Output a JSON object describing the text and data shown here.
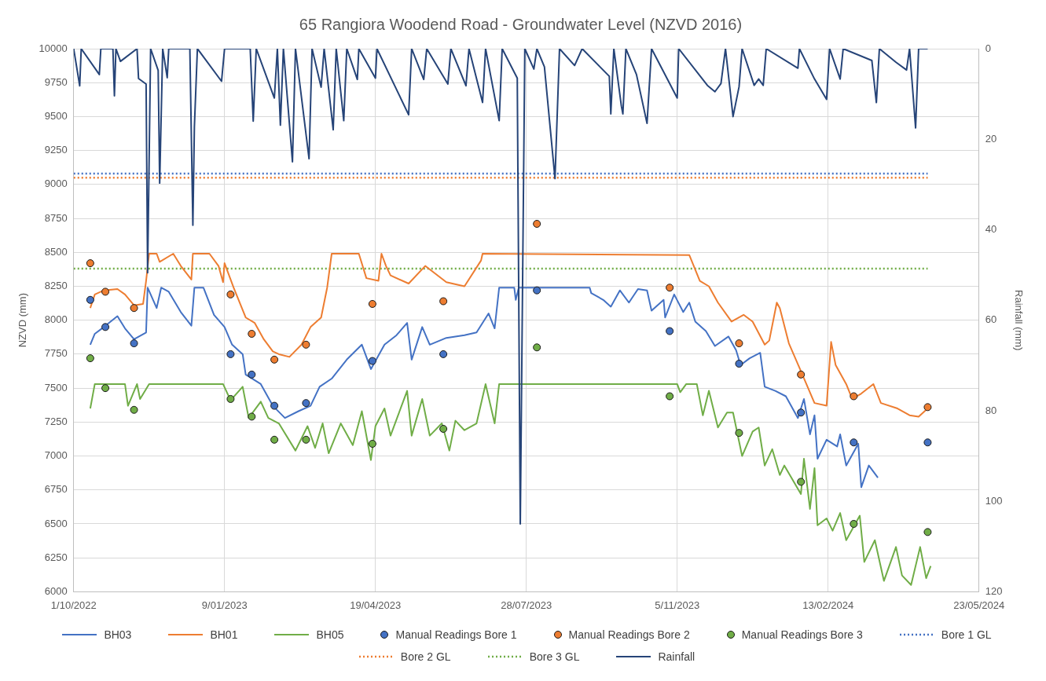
{
  "chart_data": {
    "type": "line",
    "title": "65 Rangiora Woodend Road - Groundwater Level (NZVD 2016)",
    "ylabel": "NZVD (mm)",
    "y2label": "Rainfall (mm)",
    "xlim": [
      "2022-10-01",
      "2024-05-23"
    ],
    "xticks": [
      {
        "value": "2022-10-01",
        "label": "1/10/2022"
      },
      {
        "value": "2023-01-09",
        "label": "9/01/2023"
      },
      {
        "value": "2023-04-19",
        "label": "19/04/2023"
      },
      {
        "value": "2023-07-28",
        "label": "28/07/2023"
      },
      {
        "value": "2023-11-05",
        "label": "5/11/2023"
      },
      {
        "value": "2024-02-13",
        "label": "13/02/2024"
      },
      {
        "value": "2024-05-23",
        "label": "23/05/2024"
      }
    ],
    "ylim": [
      6000,
      10000
    ],
    "yticks": [
      6000,
      6250,
      6500,
      6750,
      7000,
      7250,
      7500,
      7750,
      8000,
      8250,
      8500,
      8750,
      9000,
      9250,
      9500,
      9750,
      10000
    ],
    "y2lim": [
      120,
      0
    ],
    "y2ticks": [
      0,
      20,
      40,
      60,
      80,
      100,
      120
    ],
    "grid": true,
    "legend": "bottom",
    "series": [
      {
        "name": "BH03",
        "color": "#4472c4",
        "x": [
          "2022-10-12",
          "2022-10-15",
          "2022-10-21",
          "2022-10-30",
          "2022-11-04",
          "2022-11-10",
          "2022-11-18",
          "2022-11-19",
          "2022-11-25",
          "2022-11-28",
          "2022-12-03",
          "2022-12-11",
          "2022-12-18",
          "2022-12-20",
          "2022-12-26",
          "2023-01-02",
          "2023-01-09",
          "2023-01-14",
          "2023-01-21",
          "2023-01-23",
          "2023-02-02",
          "2023-02-10",
          "2023-02-18",
          "2023-02-27",
          "2023-03-07",
          "2023-03-13",
          "2023-03-21",
          "2023-03-31",
          "2023-04-10",
          "2023-04-16",
          "2023-04-25",
          "2023-05-03",
          "2023-05-10",
          "2023-05-13",
          "2023-05-20",
          "2023-05-25",
          "2023-06-05",
          "2023-06-17",
          "2023-06-25",
          "2023-07-03",
          "2023-07-07",
          "2023-07-10",
          "2023-07-20",
          "2023-07-21",
          "2023-07-23",
          "2023-09-08",
          "2023-09-09",
          "2023-09-17",
          "2023-09-22",
          "2023-09-28",
          "2023-10-04",
          "2023-10-10",
          "2023-10-16",
          "2023-10-19",
          "2023-10-27",
          "2023-10-28",
          "2023-11-03",
          "2023-11-09",
          "2023-11-13",
          "2023-11-17",
          "2023-11-24",
          "2023-11-30",
          "2023-12-09",
          "2023-12-14",
          "2023-12-17",
          "2023-12-23",
          "2023-12-30",
          "2024-01-02",
          "2024-01-09",
          "2024-01-16",
          "2024-01-24",
          "2024-01-28",
          "2024-02-01",
          "2024-02-04",
          "2024-02-06",
          "2024-02-12",
          "2024-02-19",
          "2024-02-21",
          "2024-02-25",
          "2024-03-04",
          "2024-03-06",
          "2024-03-11",
          "2024-03-17"
        ],
        "values": [
          7820,
          7900,
          7950,
          8030,
          7940,
          7860,
          7910,
          8240,
          8090,
          8240,
          8210,
          8060,
          7960,
          8240,
          8240,
          8040,
          7950,
          7820,
          7750,
          7600,
          7530,
          7370,
          7280,
          7330,
          7370,
          7510,
          7570,
          7710,
          7820,
          7640,
          7820,
          7890,
          7980,
          7710,
          7950,
          7820,
          7870,
          7890,
          7910,
          8050,
          7940,
          8240,
          8240,
          8150,
          8240,
          8240,
          8200,
          8150,
          8100,
          8220,
          8130,
          8230,
          8220,
          8070,
          8150,
          8020,
          8190,
          8060,
          8130,
          7990,
          7920,
          7810,
          7880,
          7780,
          7670,
          7720,
          7760,
          7510,
          7480,
          7440,
          7280,
          7420,
          7160,
          7300,
          6980,
          7120,
          7070,
          7160,
          6930,
          7090,
          6770,
          6930,
          6840
        ]
      },
      {
        "name": "BH01",
        "color": "#ed7d31",
        "x": [
          "2022-10-12",
          "2022-10-15",
          "2022-10-21",
          "2022-10-30",
          "2022-11-04",
          "2022-11-10",
          "2022-11-16",
          "2022-11-18",
          "2022-11-20",
          "2022-11-25",
          "2022-11-27",
          "2022-12-06",
          "2022-12-11",
          "2022-12-18",
          "2022-12-19",
          "2022-12-30",
          "2023-01-05",
          "2023-01-08",
          "2023-01-09",
          "2023-01-15",
          "2023-01-23",
          "2023-01-29",
          "2023-02-04",
          "2023-02-10",
          "2023-02-14",
          "2023-02-21",
          "2023-03-01",
          "2023-03-07",
          "2023-03-14",
          "2023-03-18",
          "2023-03-21",
          "2023-04-08",
          "2023-04-13",
          "2023-04-21",
          "2023-04-23",
          "2023-04-26",
          "2023-04-29",
          "2023-05-11",
          "2023-05-22",
          "2023-06-05",
          "2023-06-17",
          "2023-06-28",
          "2023-06-29",
          "2023-11-13",
          "2023-11-20",
          "2023-11-26",
          "2023-12-02",
          "2023-12-11",
          "2023-12-19",
          "2023-12-25",
          "2024-01-02",
          "2024-01-05",
          "2024-01-10",
          "2024-01-12",
          "2024-01-18",
          "2024-01-25",
          "2024-02-04",
          "2024-02-12",
          "2024-02-15",
          "2024-02-18",
          "2024-02-25",
          "2024-02-29",
          "2024-03-06",
          "2024-03-14",
          "2024-03-19",
          "2024-03-30",
          "2024-04-07",
          "2024-04-13",
          "2024-04-19"
        ],
        "values": [
          8090,
          8190,
          8220,
          8230,
          8190,
          8110,
          8120,
          8290,
          8490,
          8490,
          8430,
          8490,
          8400,
          8300,
          8490,
          8490,
          8400,
          8280,
          8420,
          8240,
          8020,
          7980,
          7860,
          7770,
          7750,
          7730,
          7820,
          7950,
          8020,
          8240,
          8490,
          8490,
          8310,
          8290,
          8490,
          8400,
          8330,
          8270,
          8400,
          8280,
          8250,
          8440,
          8490,
          8480,
          8290,
          8250,
          8130,
          7990,
          8040,
          7990,
          7820,
          7850,
          8130,
          8090,
          7830,
          7650,
          7390,
          7370,
          7840,
          7670,
          7530,
          7420,
          7460,
          7530,
          7390,
          7350,
          7300,
          7290,
          7350
        ]
      },
      {
        "name": "BH05",
        "color": "#70ad47",
        "x": [
          "2022-10-12",
          "2022-10-15",
          "2022-11-04",
          "2022-11-06",
          "2022-11-12",
          "2022-11-14",
          "2022-11-20",
          "2023-01-08",
          "2023-01-13",
          "2023-01-21",
          "2023-01-25",
          "2023-02-02",
          "2023-02-07",
          "2023-02-14",
          "2023-02-25",
          "2023-03-05",
          "2023-03-10",
          "2023-03-15",
          "2023-03-19",
          "2023-03-27",
          "2023-04-04",
          "2023-04-10",
          "2023-04-16",
          "2023-04-19",
          "2023-04-25",
          "2023-04-29",
          "2023-05-10",
          "2023-05-13",
          "2023-05-20",
          "2023-05-25",
          "2023-06-02",
          "2023-06-07",
          "2023-06-11",
          "2023-06-17",
          "2023-06-25",
          "2023-07-01",
          "2023-07-07",
          "2023-07-10",
          "2023-11-05",
          "2023-11-07",
          "2023-11-11",
          "2023-11-18",
          "2023-11-22",
          "2023-11-26",
          "2023-12-02",
          "2023-12-08",
          "2023-12-12",
          "2023-12-18",
          "2023-12-25",
          "2023-12-29",
          "2024-01-02",
          "2024-01-07",
          "2024-01-12",
          "2024-01-15",
          "2024-01-26",
          "2024-01-28",
          "2024-02-01",
          "2024-02-04",
          "2024-02-06",
          "2024-02-12",
          "2024-02-16",
          "2024-02-21",
          "2024-02-25",
          "2024-03-05",
          "2024-03-08",
          "2024-03-15",
          "2024-03-21",
          "2024-03-29",
          "2024-04-02",
          "2024-04-08",
          "2024-04-14",
          "2024-04-18",
          "2024-04-21"
        ],
        "values": [
          7350,
          7530,
          7530,
          7370,
          7530,
          7420,
          7530,
          7530,
          7410,
          7510,
          7280,
          7400,
          7280,
          7240,
          7040,
          7220,
          7060,
          7240,
          7020,
          7240,
          7080,
          7330,
          6970,
          7220,
          7350,
          7150,
          7480,
          7150,
          7420,
          7150,
          7240,
          7040,
          7260,
          7190,
          7240,
          7530,
          7240,
          7530,
          7530,
          7470,
          7530,
          7530,
          7300,
          7480,
          7210,
          7320,
          7320,
          7000,
          7180,
          7210,
          6930,
          7050,
          6860,
          6930,
          6720,
          6980,
          6610,
          6910,
          6490,
          6540,
          6450,
          6580,
          6380,
          6560,
          6220,
          6380,
          6080,
          6330,
          6120,
          6050,
          6330,
          6100,
          6190
        ]
      },
      {
        "name": "Manual Readings Bore 1",
        "type": "scatter",
        "marker": "circle",
        "color": "#4472c4",
        "x": [
          "2022-10-12",
          "2022-10-22",
          "2022-11-10",
          "2023-01-13",
          "2023-01-27",
          "2023-02-11",
          "2023-03-04",
          "2023-04-17",
          "2023-06-03",
          "2023-08-04",
          "2023-10-31",
          "2023-12-16",
          "2024-01-26",
          "2024-03-01",
          "2024-04-19"
        ],
        "values": [
          8150,
          7950,
          7830,
          7750,
          7600,
          7370,
          7390,
          7700,
          7750,
          8220,
          7920,
          7680,
          7320,
          7100,
          7100
        ]
      },
      {
        "name": "Manual Readings Bore 2",
        "type": "scatter",
        "marker": "circle",
        "color": "#ed7d31",
        "x": [
          "2022-10-12",
          "2022-10-22",
          "2022-11-10",
          "2023-01-13",
          "2023-01-27",
          "2023-02-11",
          "2023-03-04",
          "2023-04-17",
          "2023-06-03",
          "2023-08-04",
          "2023-10-31",
          "2023-12-16",
          "2024-01-26",
          "2024-03-01",
          "2024-04-19"
        ],
        "values": [
          8420,
          8210,
          8090,
          8190,
          7900,
          7710,
          7820,
          8120,
          8140,
          8710,
          8240,
          7830,
          7600,
          7440,
          7360
        ]
      },
      {
        "name": "Manual Readings Bore 3",
        "type": "scatter",
        "marker": "circle",
        "color": "#70ad47",
        "x": [
          "2022-10-12",
          "2022-10-22",
          "2022-11-10",
          "2023-01-13",
          "2023-01-27",
          "2023-02-11",
          "2023-03-04",
          "2023-04-17",
          "2023-06-03",
          "2023-08-04",
          "2023-10-31",
          "2023-12-16",
          "2024-01-26",
          "2024-03-01",
          "2024-04-19"
        ],
        "values": [
          7720,
          7500,
          7340,
          7420,
          7290,
          7120,
          7120,
          7090,
          7200,
          7800,
          7440,
          7170,
          6810,
          6500,
          6440
        ]
      },
      {
        "name": "Bore 1 GL",
        "line_style": "dotted",
        "color": "#4472c4",
        "x": [
          "2022-10-01",
          "2024-04-19"
        ],
        "values": [
          9080,
          9080
        ]
      },
      {
        "name": "Bore 2 GL",
        "line_style": "dotted",
        "color": "#ed7d31",
        "x": [
          "2022-10-01",
          "2024-04-19"
        ],
        "values": [
          9050,
          9050
        ]
      },
      {
        "name": "Bore 3 GL",
        "line_style": "dotted",
        "color": "#70ad47",
        "x": [
          "2022-10-01",
          "2024-04-19"
        ],
        "values": [
          8380,
          8380
        ]
      },
      {
        "name": "Rainfall",
        "axis": "y2",
        "color": "#264478",
        "x": [
          "2022-10-01",
          "2022-10-05",
          "2022-10-06",
          "2022-10-18",
          "2022-10-19",
          "2022-10-27",
          "2022-10-28",
          "2022-10-29",
          "2022-11-01",
          "2022-11-12",
          "2022-11-13",
          "2022-11-18",
          "2022-11-19",
          "2022-11-21",
          "2022-11-26",
          "2022-11-27",
          "2022-11-29",
          "2022-12-02",
          "2022-12-03",
          "2022-12-17",
          "2022-12-19",
          "2022-12-20",
          "2022-12-22",
          "2023-01-07",
          "2023-01-09",
          "2023-01-26",
          "2023-01-28",
          "2023-01-30",
          "2023-02-11",
          "2023-02-13",
          "2023-02-15",
          "2023-02-17",
          "2023-02-23",
          "2023-02-25",
          "2023-03-06",
          "2023-03-08",
          "2023-03-14",
          "2023-03-16",
          "2023-03-22",
          "2023-03-24",
          "2023-03-29",
          "2023-03-31",
          "2023-04-07",
          "2023-04-08",
          "2023-04-19",
          "2023-04-20",
          "2023-05-11",
          "2023-05-13",
          "2023-05-21",
          "2023-05-23",
          "2023-06-06",
          "2023-06-08",
          "2023-06-18",
          "2023-06-20",
          "2023-06-29",
          "2023-07-01",
          "2023-07-10",
          "2023-07-12",
          "2023-07-22",
          "2023-07-24",
          "2023-07-27",
          "2023-08-02",
          "2023-08-04",
          "2023-08-09",
          "2023-08-16",
          "2023-08-19",
          "2023-08-29",
          "2023-09-03",
          "2023-09-21",
          "2023-09-22",
          "2023-09-24",
          "2023-09-29",
          "2023-09-30",
          "2023-10-02",
          "2023-10-09",
          "2023-10-16",
          "2023-10-19",
          "2023-11-05",
          "2023-11-06",
          "2023-11-25",
          "2023-11-30",
          "2023-12-04",
          "2023-12-07",
          "2023-12-12",
          "2023-12-16",
          "2023-12-18",
          "2023-12-26",
          "2023-12-29",
          "2024-01-01",
          "2024-01-03",
          "2024-01-24",
          "2024-01-25",
          "2024-02-04",
          "2024-02-12",
          "2024-02-14",
          "2024-02-21",
          "2024-02-23",
          "2024-03-13",
          "2024-03-16",
          "2024-03-18",
          "2024-03-29",
          "2024-04-05",
          "2024-04-07",
          "2024-04-11",
          "2024-04-13",
          "2024-04-19"
        ],
        "values": [
          0,
          8.2,
          0,
          5.7,
          0,
          0,
          10.4,
          0,
          2.8,
          0,
          6.6,
          7.8,
          49.5,
          0,
          4.8,
          29.7,
          0,
          6.4,
          0,
          0,
          39,
          17.3,
          0,
          7.2,
          0,
          0,
          16,
          0,
          10.9,
          0,
          16.9,
          0,
          25,
          0,
          24.3,
          0,
          8.5,
          0,
          17.9,
          0,
          15.9,
          0,
          6.8,
          0,
          6.5,
          0,
          14.6,
          0,
          6.8,
          0,
          7.8,
          0,
          8.2,
          0,
          11.9,
          0,
          15.9,
          0,
          6.5,
          105,
          0,
          4.5,
          0,
          4,
          28.7,
          0,
          3.7,
          0,
          6.1,
          14.4,
          0,
          12.7,
          14.4,
          0,
          5.7,
          16.5,
          0,
          10.9,
          0,
          8.1,
          9.5,
          7.7,
          0,
          15,
          8.4,
          0,
          8.1,
          6.7,
          8.1,
          0,
          4.3,
          0,
          6.7,
          11.2,
          0,
          6.7,
          0,
          2.6,
          11.9,
          0,
          3,
          4.7,
          0,
          17.5,
          0,
          0
        ]
      }
    ]
  }
}
